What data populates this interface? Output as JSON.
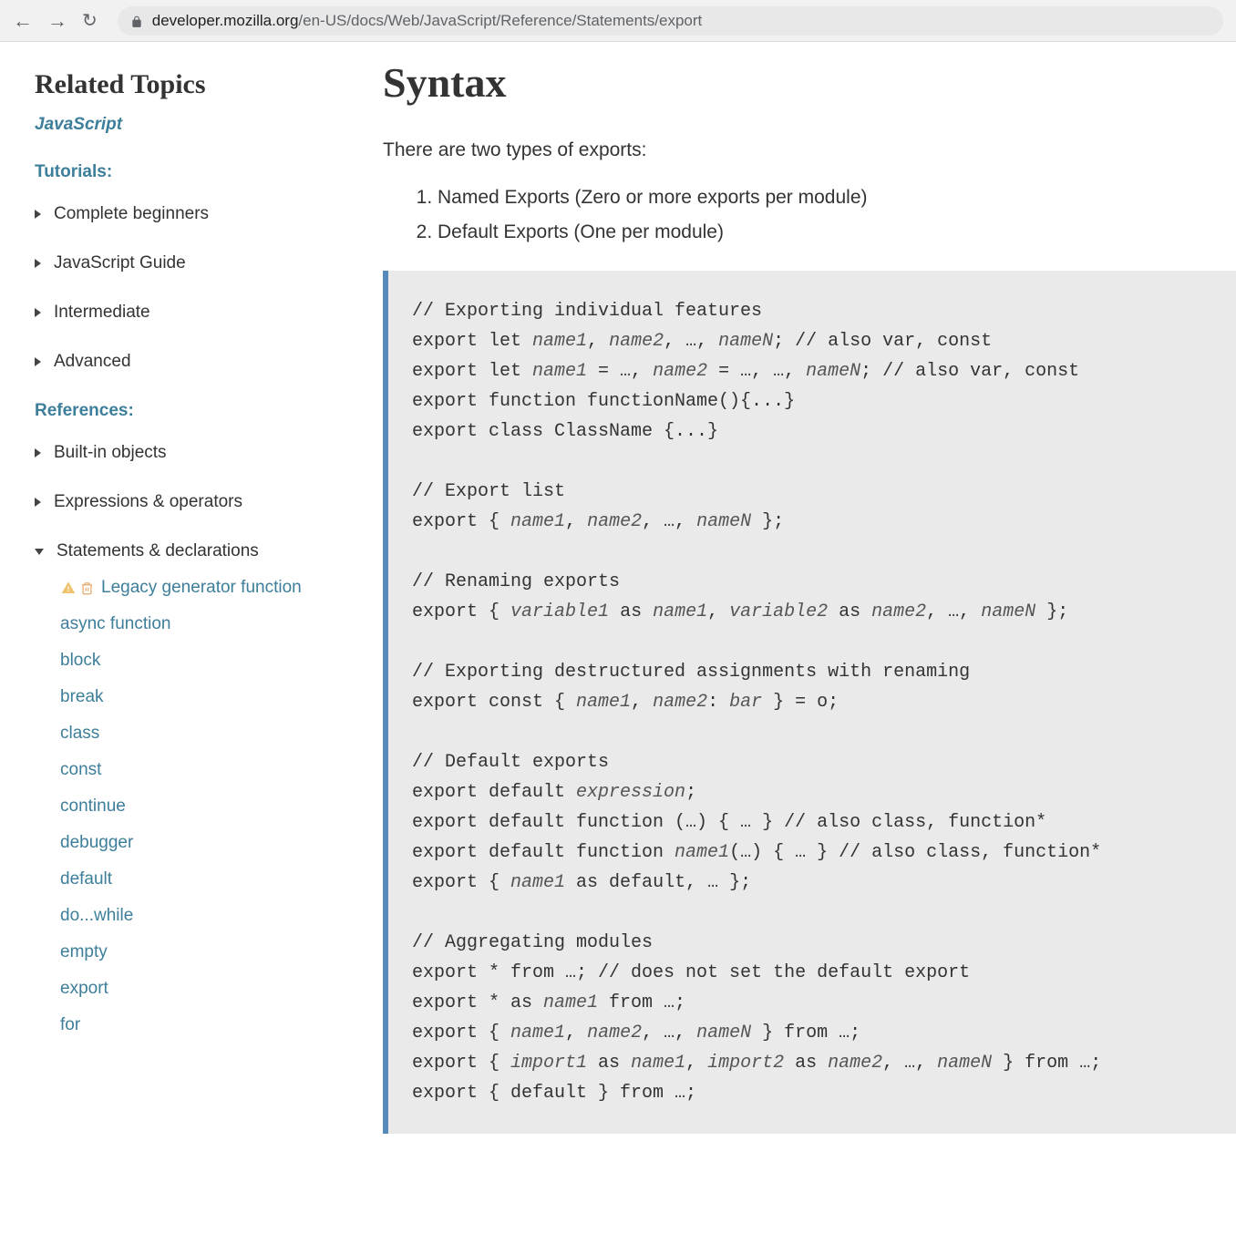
{
  "browser": {
    "url_host": "developer.mozilla.org",
    "url_path": "/en-US/docs/Web/JavaScript/Reference/Statements/export"
  },
  "sidebar": {
    "related_title": "Related Topics",
    "javascript_link": "JavaScript",
    "tutorials_label": "Tutorials:",
    "references_label": "References:",
    "tutorials": [
      {
        "label": "Complete beginners",
        "expanded": false
      },
      {
        "label": "JavaScript Guide",
        "expanded": false
      },
      {
        "label": "Intermediate",
        "expanded": false
      },
      {
        "label": "Advanced",
        "expanded": false
      }
    ],
    "references": [
      {
        "label": "Built-in objects",
        "expanded": false
      },
      {
        "label": "Expressions & operators",
        "expanded": false
      },
      {
        "label": "Statements & declarations",
        "expanded": true
      }
    ],
    "statements_children": {
      "legacy": "Legacy generator function",
      "items": [
        "async function",
        "block",
        "break",
        "class",
        "const",
        "continue",
        "debugger",
        "default",
        "do...while",
        "empty",
        "export",
        "for"
      ]
    }
  },
  "article": {
    "title": "Syntax",
    "intro": "There are two types of exports:",
    "list": [
      "Named Exports (Zero or more exports per module)",
      "Default Exports (One per module)"
    ],
    "code": "// Exporting individual features\nexport let name1, name2, …, nameN; // also var, const\nexport let name1 = …, name2 = …, …, nameN; // also var, const\nexport function functionName(){...}\nexport class ClassName {...}\n\n// Export list\nexport { name1, name2, …, nameN };\n\n// Renaming exports\nexport { variable1 as name1, variable2 as name2, …, nameN };\n\n// Exporting destructured assignments with renaming\nexport const { name1, name2: bar } = o;\n\n// Default exports\nexport default expression;\nexport default function (…) { … } // also class, function*\nexport default function name1(…) { … } // also class, function*\nexport { name1 as default, … };\n\n// Aggregating modules\nexport * from …; // does not set the default export\nexport * as name1 from …;\nexport { name1, name2, …, nameN } from …;\nexport { import1 as name1, import2 as name2, …, nameN } from …;\nexport { default } from …;"
  }
}
